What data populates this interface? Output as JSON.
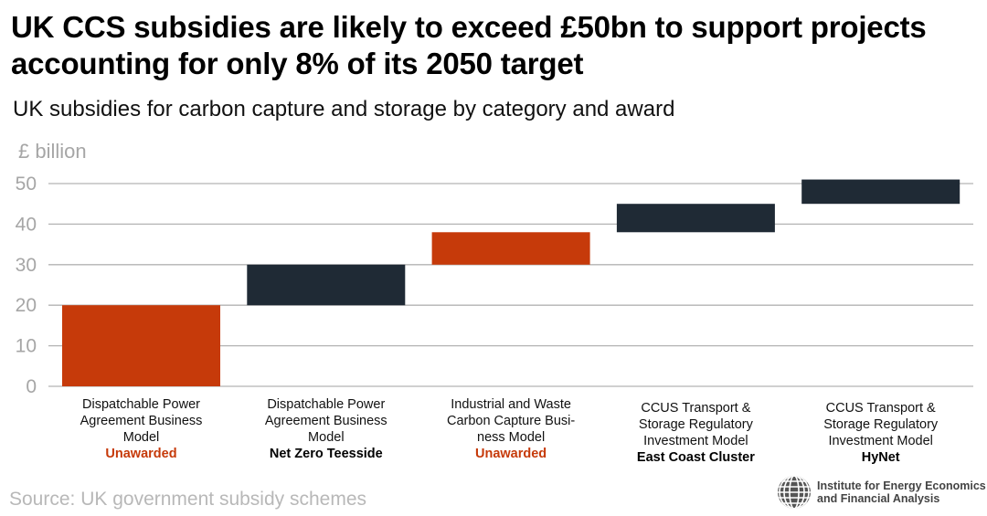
{
  "title": "UK CCS subsidies are likely to exceed £50bn to support projects accounting for only 8% of its 2050 target",
  "subtitle": "UK subsidies for carbon capture and storage by category and award",
  "source": "Source: UK government subsidy schemes",
  "logo": {
    "icon": "globe-icon",
    "line1": "Institute for Energy Economics",
    "line2": "and Financial Analysis"
  },
  "colors": {
    "unawarded": "#c63a0a",
    "awarded": "#1f2a35",
    "grid": "#b3b3b3",
    "axis_text": "#a6a6a6"
  },
  "chart_data": {
    "type": "waterfall",
    "title": "UK subsidies for carbon capture and storage by category and award",
    "ylabel": "£ billion",
    "xlabel": "",
    "ylim": [
      0,
      50
    ],
    "yticks": [
      0,
      10,
      20,
      30,
      40,
      50
    ],
    "grid": true,
    "legend": "none",
    "categories": [
      {
        "name": "Dispatchable Power Agreement Business Model",
        "lines": [
          "Dispatchable Power",
          "Agreement Business",
          "Model"
        ],
        "award": "Unawarded",
        "status": "unawarded",
        "start": 0,
        "end": 20,
        "value": 20
      },
      {
        "name": "Dispatchable Power Agreement Business Model",
        "lines": [
          "Dispatchable Power",
          "Agreement Business",
          "Model"
        ],
        "award": "Net Zero Teesside",
        "status": "awarded",
        "start": 20,
        "end": 30,
        "value": 10
      },
      {
        "name": "Industrial and Waste Carbon Capture Business Model",
        "lines": [
          "Industrial and Waste",
          "Carbon Capture Busi-",
          "ness Model"
        ],
        "award": "Unawarded",
        "status": "unawarded",
        "start": 30,
        "end": 38,
        "value": 8
      },
      {
        "name": "CCUS Transport & Storage Regulatory Investment Model",
        "lines": [
          "CCUS Transport &",
          "Storage Regulatory",
          "Investment Model"
        ],
        "award": "East Coast Cluster",
        "status": "awarded",
        "start": 38,
        "end": 45,
        "value": 7
      },
      {
        "name": "CCUS Transport & Storage Regulatory Investment Model",
        "lines": [
          "CCUS Transport &",
          "Storage Regulatory",
          "Investment Model"
        ],
        "award": "HyNet",
        "status": "awarded",
        "start": 45,
        "end": 51,
        "value": 6
      }
    ]
  }
}
